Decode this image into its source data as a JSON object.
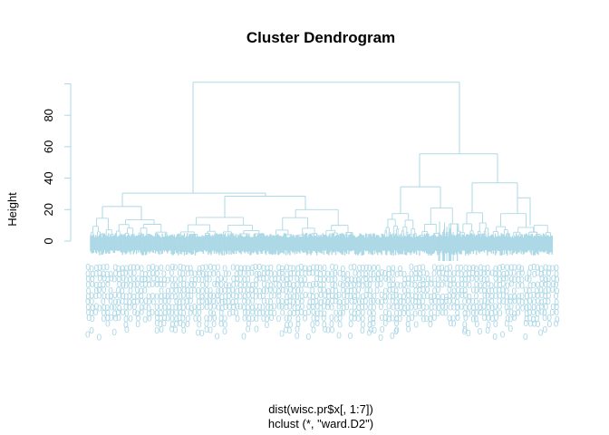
{
  "chart_data": {
    "type": "dendrogram",
    "title": "Cluster Dendrogram",
    "ylabel": "Height",
    "xlabel": "dist(wisc.pr$x[, 1:7])",
    "sublabel": "hclust (*, \"ward.D2\")",
    "ylim": [
      0,
      100
    ],
    "yticks": [
      0,
      20,
      40,
      60,
      80
    ],
    "color": "#add8e6",
    "leaf_label_text": "0",
    "merges": [
      {
        "name": "root",
        "height": 101,
        "left": "A",
        "right": "B"
      },
      {
        "name": "A",
        "height": 30.5,
        "left": "A1",
        "right": "A2"
      },
      {
        "name": "A1",
        "height": 22,
        "left": "A1a",
        "right": "A1b"
      },
      {
        "name": "A2",
        "height": 28.5,
        "left": "A2a",
        "right": "A2b"
      },
      {
        "name": "B",
        "height": 55.5,
        "left": "B1",
        "right": "B2"
      },
      {
        "name": "B1",
        "height": 34.5,
        "left": "B1a",
        "right": "B1b"
      },
      {
        "name": "B2",
        "height": 37,
        "left": "B2a",
        "right": "B2b"
      },
      {
        "name": "B2b",
        "height": 27.5,
        "left": "B2b1",
        "right": "B2b2"
      }
    ]
  }
}
